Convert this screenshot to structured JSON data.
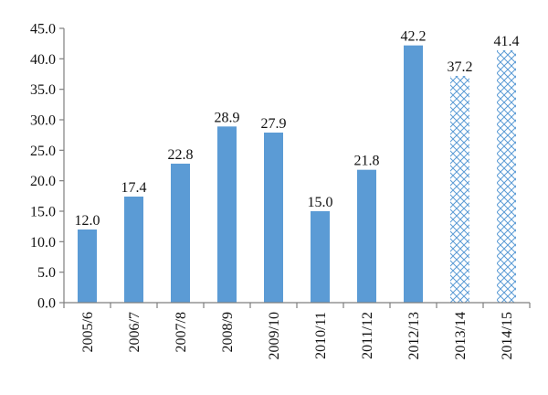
{
  "chart_data": {
    "type": "bar",
    "title": "",
    "xlabel": "",
    "ylabel": "",
    "categories": [
      "2005/6",
      "2006/7",
      "2007/8",
      "2008/9",
      "2009/10",
      "2010/11",
      "2011/12",
      "2012/13",
      "2013/14",
      "2014/15"
    ],
    "values": [
      12.0,
      17.4,
      22.8,
      28.9,
      27.9,
      15.0,
      21.8,
      42.2,
      37.2,
      41.4
    ],
    "data_labels": [
      "12.0",
      "17.4",
      "22.8",
      "28.9",
      "27.9",
      "15.0",
      "21.8",
      "42.2",
      "37.2",
      "41.4"
    ],
    "bar_style": [
      "solid",
      "solid",
      "solid",
      "solid",
      "solid",
      "solid",
      "solid",
      "solid",
      "crosshatch",
      "crosshatch"
    ],
    "ylim": [
      0,
      45
    ],
    "y_ticks": [
      0,
      5,
      10,
      15,
      20,
      25,
      30,
      35,
      40,
      45
    ],
    "y_tick_labels": [
      "0.0",
      "5.0",
      "10.0",
      "15.0",
      "20.0",
      "25.0",
      "30.0",
      "35.0",
      "40.0",
      "45.0"
    ],
    "grid": false,
    "legend": "none",
    "colors": {
      "bar": "#5b9bd5",
      "hatch": "#5b9bd5",
      "axis": "#7f7f7f",
      "text": "#111111"
    }
  }
}
